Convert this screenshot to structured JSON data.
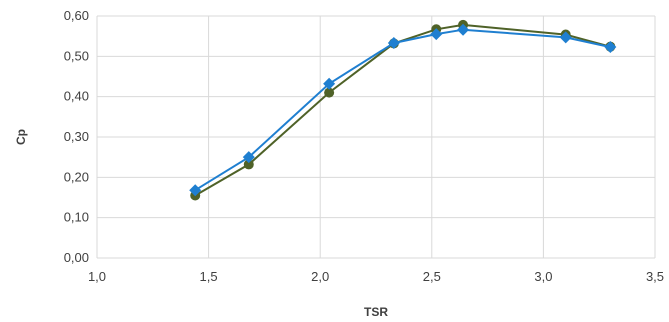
{
  "chart_data": {
    "type": "scatter",
    "title": "",
    "xlabel": "TSR",
    "ylabel": "Cp",
    "xlim": [
      1.0,
      3.5
    ],
    "ylim": [
      0.0,
      0.6
    ],
    "x_ticks": [
      "1,0",
      "1,5",
      "2,0",
      "2,5",
      "3,0",
      "3,5"
    ],
    "y_ticks": [
      "0,00",
      "0,10",
      "0,20",
      "0,30",
      "0,40",
      "0,50",
      "0,60"
    ],
    "grid": true,
    "legend": "none",
    "series": [
      {
        "color": "#4f6228",
        "marker": "circle",
        "line": true,
        "points": [
          [
            1.44,
            0.155
          ],
          [
            1.68,
            0.232
          ],
          [
            2.04,
            0.41
          ],
          [
            2.33,
            0.532
          ],
          [
            2.52,
            0.567
          ],
          [
            2.64,
            0.578
          ],
          [
            3.1,
            0.554
          ],
          [
            3.3,
            0.524
          ]
        ]
      },
      {
        "color": "#1f7fd0",
        "marker": "diamond",
        "line": true,
        "points": [
          [
            1.44,
            0.168
          ],
          [
            1.68,
            0.25
          ],
          [
            2.04,
            0.432
          ],
          [
            2.33,
            0.533
          ],
          [
            2.52,
            0.555
          ],
          [
            2.64,
            0.566
          ],
          [
            3.1,
            0.547
          ],
          [
            3.3,
            0.523
          ]
        ]
      }
    ]
  }
}
